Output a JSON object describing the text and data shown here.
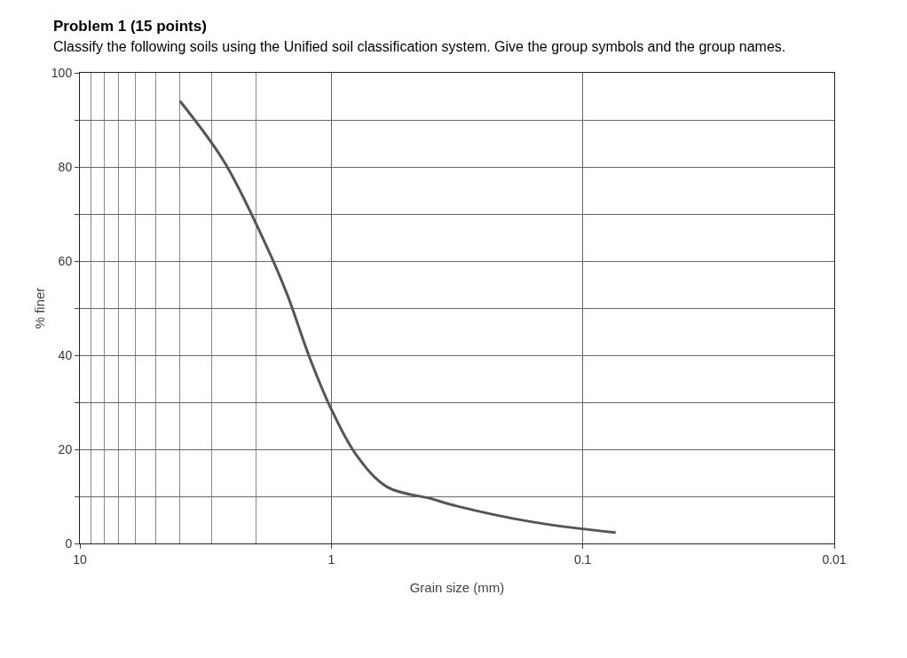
{
  "chart_data": {
    "type": "line",
    "title": "Problem 1 (15 points)",
    "subtitle": "Classify the following soils using the Unified soil classification system. Give the group symbols and the group names.",
    "xlabel": "Grain size (mm)",
    "ylabel": "% finer",
    "log": "x",
    "color": "#555555",
    "x": [
      4,
      2.66,
      1.84,
      1.5,
      1.23,
      1.01,
      0.8,
      0.6,
      0.4,
      0.32,
      0.16,
      0.074
    ],
    "values": [
      94,
      81,
      64,
      53,
      40,
      29,
      19,
      12,
      9.5,
      8,
      4.6,
      2.3
    ],
    "xlim": [
      10,
      0.01
    ],
    "xticks": [
      10,
      1,
      0.1,
      0.01
    ],
    "ylim": [
      0,
      100
    ],
    "yticks": [
      0,
      {
        "value": 10,
        "label": null
      },
      20,
      {
        "value": 30,
        "label": null
      },
      40,
      {
        "value": 50,
        "label": null
      },
      60,
      {
        "value": 70,
        "label": null
      },
      80,
      {
        "value": 90,
        "label": null
      },
      100
    ],
    "grid": true,
    "marker": "none",
    "line_style": "solid"
  }
}
